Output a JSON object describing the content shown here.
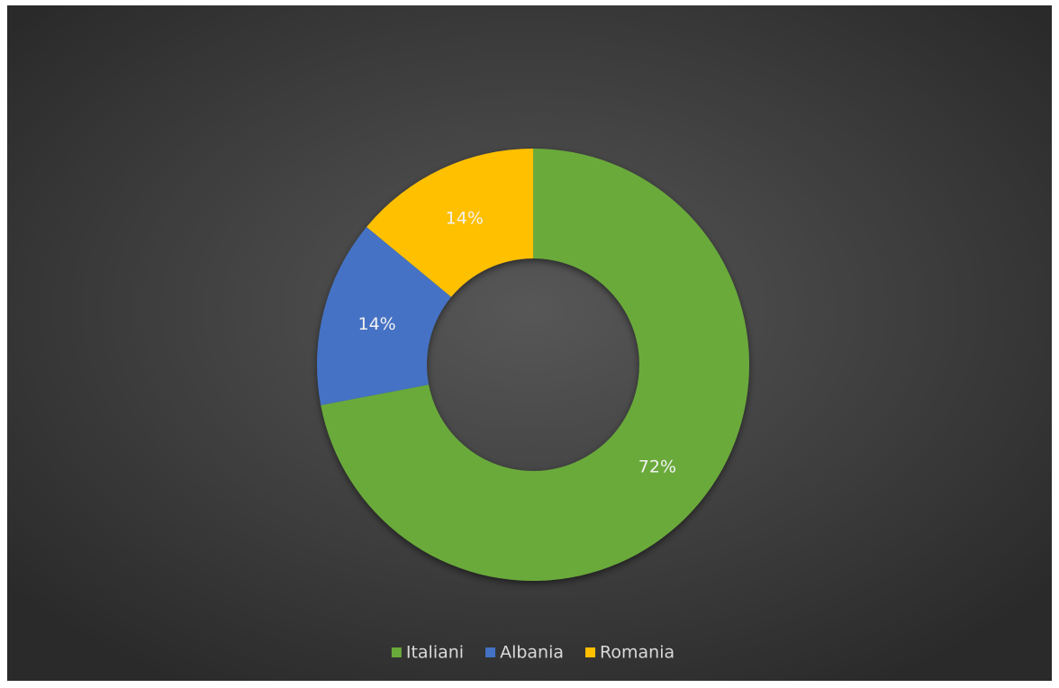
{
  "chart_data": {
    "type": "donut",
    "categories": [
      "Italiani",
      "Albania",
      "Romania"
    ],
    "values": [
      72,
      14,
      14
    ],
    "value_labels": [
      "72%",
      "14%",
      "14%"
    ],
    "colors": [
      "#6aaa3a",
      "#4472c4",
      "#ffc000"
    ],
    "legend": "bottom"
  }
}
